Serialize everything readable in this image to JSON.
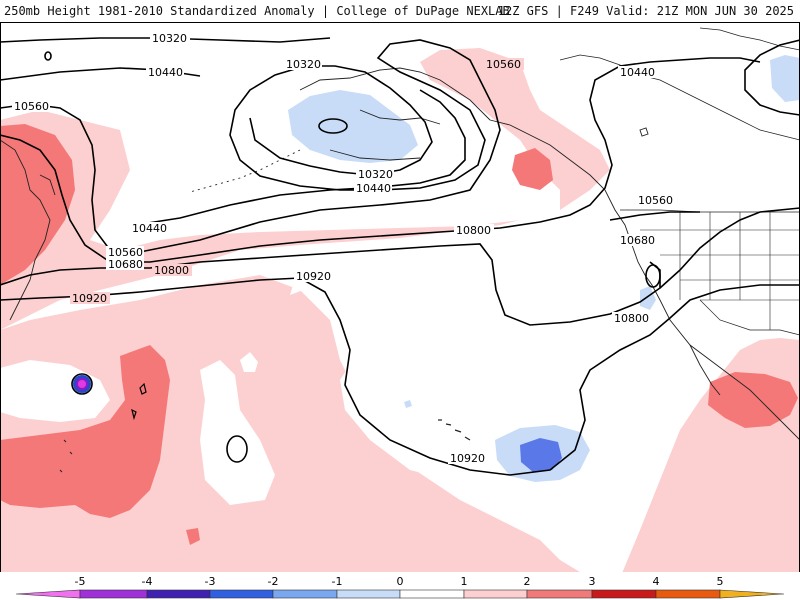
{
  "header": {
    "title": "250mb Height 1981-2010 Standardized Anomaly | College of DuPage NEXLAB",
    "run_info": "12Z GFS | F249 Valid: 21Z MON JUN 30 2025"
  },
  "contours": {
    "labels": [
      "10320",
      "10440",
      "10560",
      "10680",
      "10800",
      "10920"
    ]
  },
  "legend": {
    "ticks": [
      "-5",
      "-4",
      "-3",
      "-2",
      "-1",
      "0",
      "1",
      "2",
      "3",
      "4",
      "5"
    ]
  },
  "colors": {
    "neg5": "#e23ae2",
    "neg4": "#8a1ac8",
    "neg3": "#2848c8",
    "neg2": "#5a80e8",
    "neg1": "#c8dcf8",
    "zero": "#ffffff",
    "pos1": "#fcd0d0",
    "pos2": "#f06a6a",
    "pos3": "#c81a1a",
    "pos4": "#e85a10",
    "pos5": "#f0a018",
    "contour": "#000000",
    "coast": "#000000"
  }
}
